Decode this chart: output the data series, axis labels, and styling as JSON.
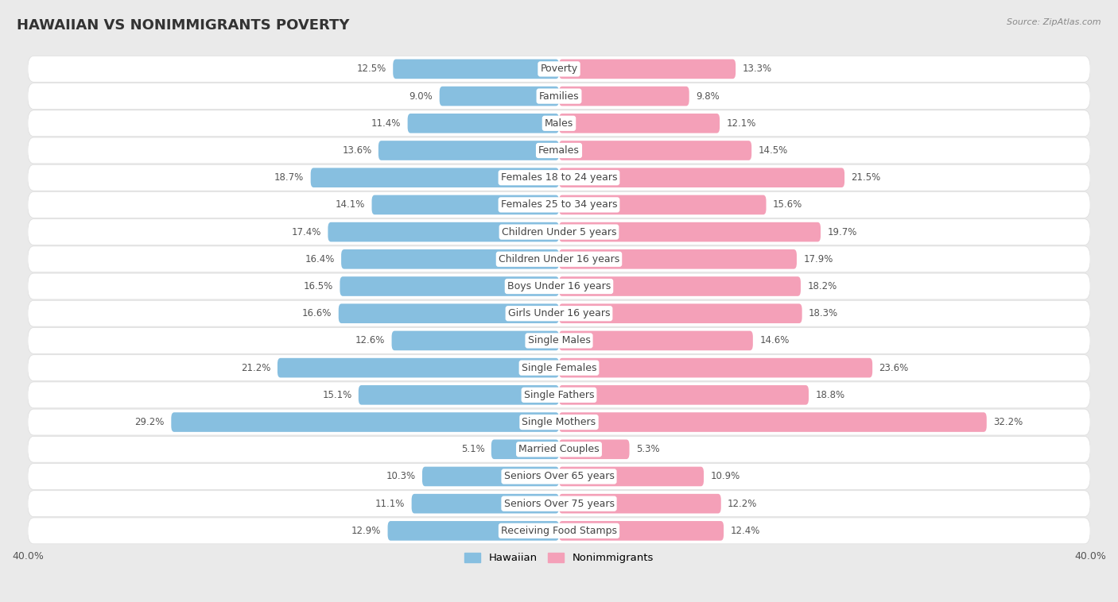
{
  "title": "HAWAIIAN VS NONIMMIGRANTS POVERTY",
  "source": "Source: ZipAtlas.com",
  "categories": [
    "Poverty",
    "Families",
    "Males",
    "Females",
    "Females 18 to 24 years",
    "Females 25 to 34 years",
    "Children Under 5 years",
    "Children Under 16 years",
    "Boys Under 16 years",
    "Girls Under 16 years",
    "Single Males",
    "Single Females",
    "Single Fathers",
    "Single Mothers",
    "Married Couples",
    "Seniors Over 65 years",
    "Seniors Over 75 years",
    "Receiving Food Stamps"
  ],
  "hawaiian": [
    12.5,
    9.0,
    11.4,
    13.6,
    18.7,
    14.1,
    17.4,
    16.4,
    16.5,
    16.6,
    12.6,
    21.2,
    15.1,
    29.2,
    5.1,
    10.3,
    11.1,
    12.9
  ],
  "nonimmigrants": [
    13.3,
    9.8,
    12.1,
    14.5,
    21.5,
    15.6,
    19.7,
    17.9,
    18.2,
    18.3,
    14.6,
    23.6,
    18.8,
    32.2,
    5.3,
    10.9,
    12.2,
    12.4
  ],
  "hawaiian_color": "#87BFE0",
  "nonimmigrants_color": "#F4A0B8",
  "background_color": "#EAEAEA",
  "row_color": "#FFFFFF",
  "axis_limit": 40.0,
  "title_fontsize": 13,
  "label_fontsize": 9,
  "value_fontsize": 8.5,
  "bar_height": 0.72
}
